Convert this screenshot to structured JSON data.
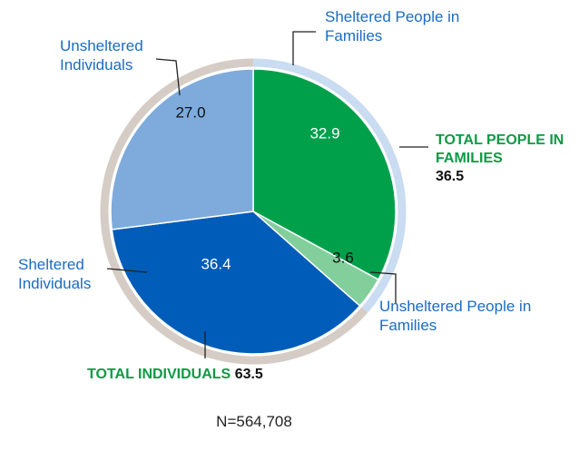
{
  "chart_data": {
    "type": "pie",
    "categories": [
      "Sheltered People in Families",
      "Unsheltered People in Families",
      "Sheltered Individuals",
      "Unsheltered Individuals"
    ],
    "values": [
      32.9,
      3.6,
      36.4,
      27.0
    ],
    "value_labels": [
      "32.9",
      "3.6",
      "36.4",
      "27.0"
    ],
    "colors": [
      "#00a04b",
      "#82cf9c",
      "#005cb9",
      "#7eabdc"
    ],
    "groups": [
      {
        "label": "TOTAL PEOPLE IN FAMILIES",
        "value": 36.5,
        "color": "#c9dcf1"
      },
      {
        "label": "TOTAL INDIVIDUALS",
        "value": 63.5,
        "color": "#d5cdc5"
      }
    ],
    "footnote": "N=564,708"
  }
}
